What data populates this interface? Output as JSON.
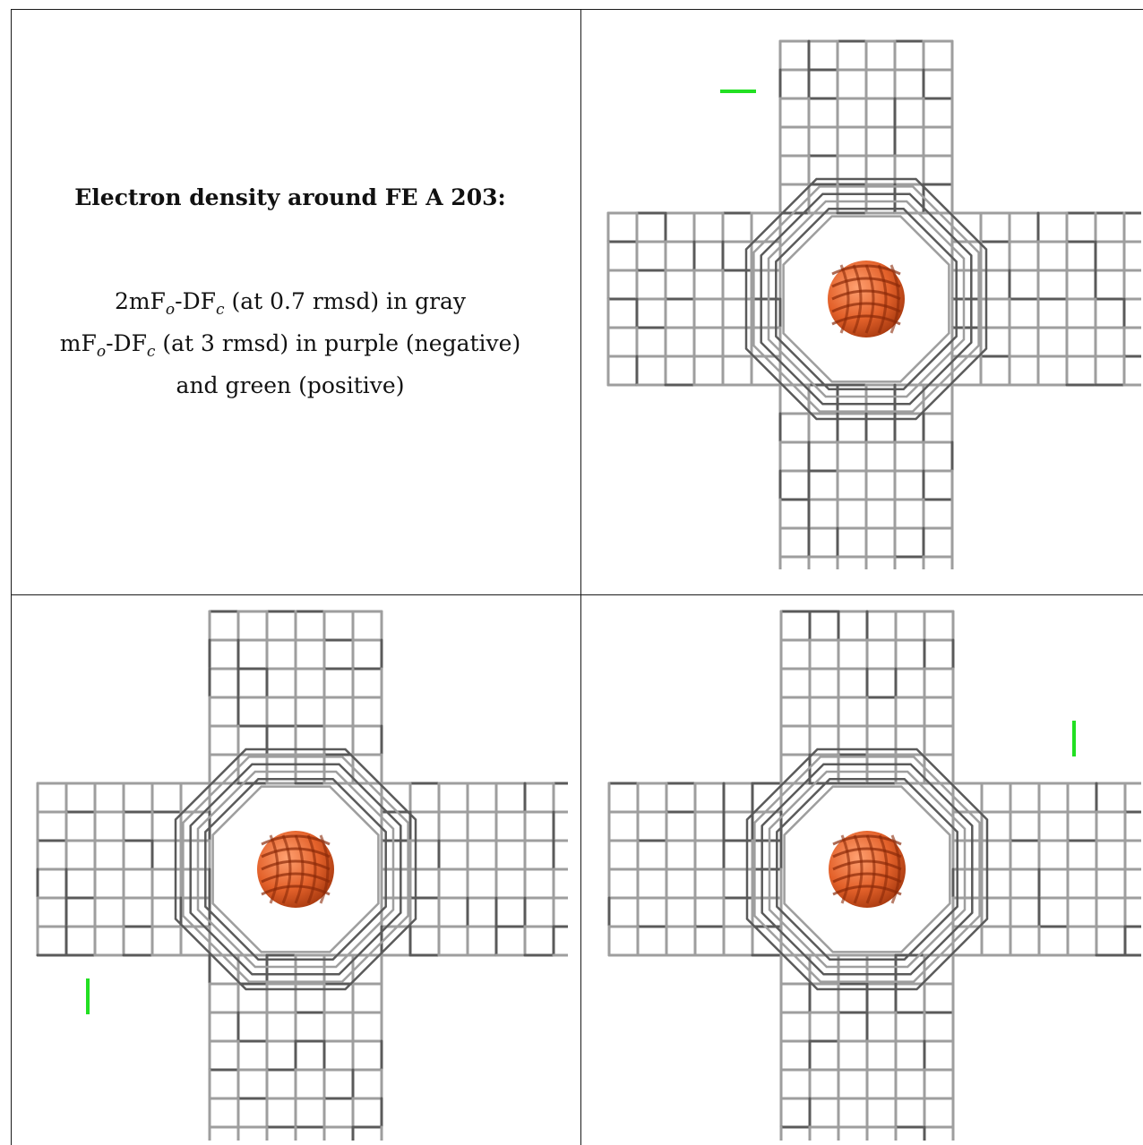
{
  "caption": {
    "title": "Electron density around FE A 203:",
    "line1_prefix": "2mF",
    "line1_sub_o": "o",
    "line1_mid": "-DF",
    "line1_sub_c": "c",
    "line1_suffix": " (at 0.7 rmsd) in gray",
    "line2_prefix": "mF",
    "line2_sub_o": "o",
    "line2_mid": "-DF",
    "line2_sub_c": "c",
    "line2_suffix": " (at 3 rmsd) in purple (negative)",
    "line3": "and green (positive)"
  },
  "colors": {
    "mesh_gray": "#9e9e9e",
    "mesh_dark": "#5a5a5a",
    "atom_orange": "#e3612a",
    "positive_green": "#22e022"
  },
  "views": [
    {
      "label": "top-right",
      "green_marker": "horizontal-top-left"
    },
    {
      "label": "bottom-left",
      "green_marker": "vertical-lower-left"
    },
    {
      "label": "bottom-right",
      "green_marker": "vertical-upper-right"
    }
  ]
}
